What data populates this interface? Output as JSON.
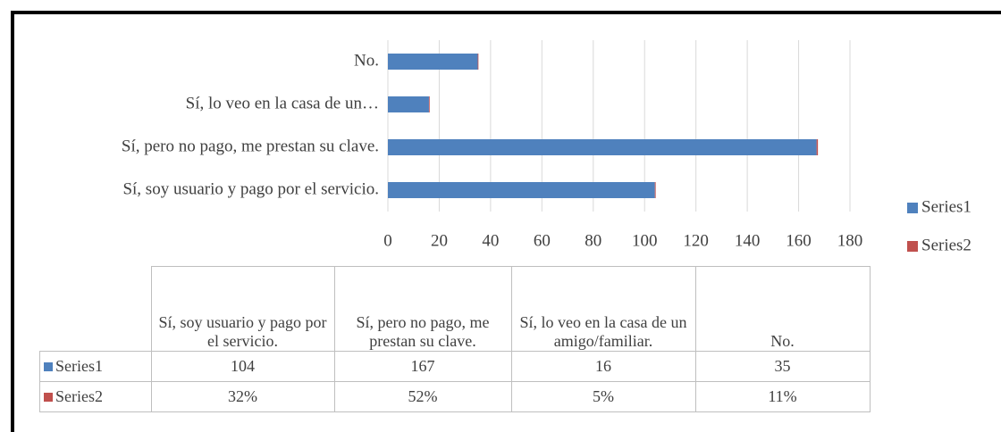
{
  "chart_data": {
    "type": "stacked_bar_horizontal",
    "categories": [
      "Sí, soy usuario y pago por el servicio.",
      "Sí, pero no pago, me prestan su clave.",
      "Sí, lo veo en la casa de un amigo/familiar.",
      "No."
    ],
    "axis_category_labels": [
      "Sí, soy usuario y pago por el servicio.",
      "Sí, pero no pago, me prestan su clave.",
      "Sí, lo veo en la casa de un…",
      "No."
    ],
    "series": [
      {
        "name": "Series1",
        "color": "#4f81bd",
        "values": [
          104,
          167,
          16,
          35
        ]
      },
      {
        "name": "Series2",
        "color": "#c0504d",
        "values": [
          0.32,
          0.52,
          0.05,
          0.11
        ],
        "value_labels": [
          "32%",
          "52%",
          "5%",
          "11%"
        ]
      }
    ],
    "xlim": [
      0,
      180
    ],
    "xticks": [
      0,
      20,
      40,
      60,
      80,
      100,
      120,
      140,
      160,
      180
    ],
    "grid": true,
    "legend": "right",
    "data_table": true
  }
}
